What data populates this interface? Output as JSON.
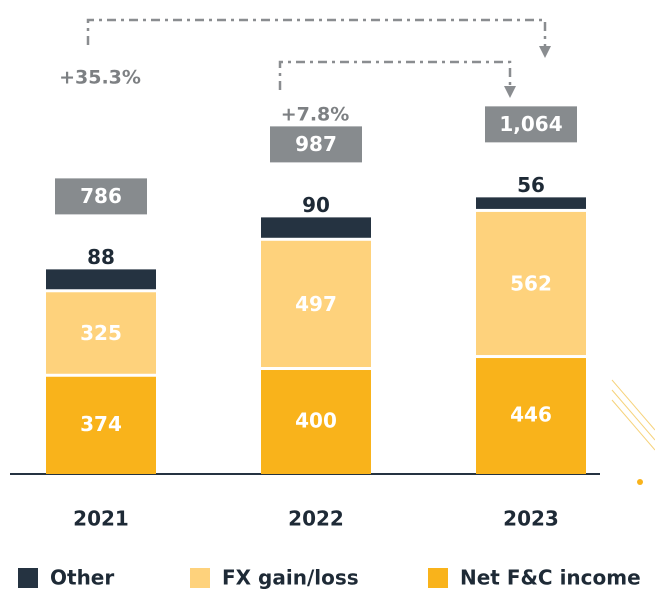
{
  "chart_data": {
    "type": "bar",
    "stacked": true,
    "categories": [
      "2021",
      "2022",
      "2023"
    ],
    "series": [
      {
        "name": "Net F&C income",
        "color": "#f9b31b",
        "values": [
          374,
          400,
          446
        ]
      },
      {
        "name": "FX gain/loss",
        "color": "#fed27c",
        "values": [
          325,
          497,
          562
        ]
      },
      {
        "name": "Other",
        "color": "#253341",
        "values": [
          88,
          90,
          56
        ]
      }
    ],
    "totals": {
      "values": [
        786,
        987,
        1064
      ],
      "value_labels": [
        "786",
        "987",
        "1,064"
      ],
      "color": "#878b8e"
    },
    "annotations": [
      "+35.3%",
      "+7.8%"
    ]
  }
}
